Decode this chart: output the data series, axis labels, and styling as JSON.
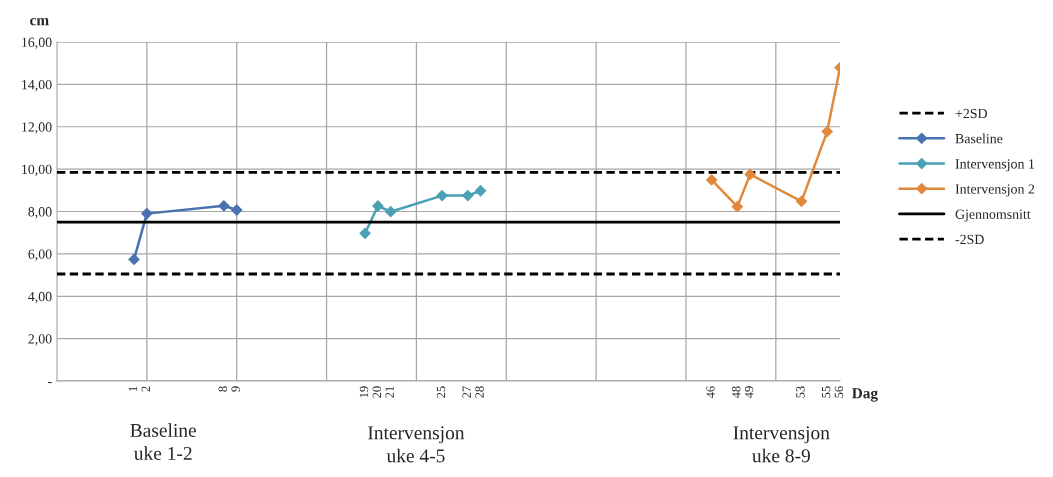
{
  "chart_data": {
    "type": "line",
    "ylabel": "cm",
    "xlabel": "Dag",
    "xlim": [
      -5,
      56
    ],
    "ylim": [
      0,
      16
    ],
    "xticks": [
      1,
      2,
      8,
      9,
      19,
      20,
      21,
      25,
      27,
      28,
      46,
      48,
      49,
      53,
      55,
      56
    ],
    "yticks": [
      {
        "value": 0,
        "label": "-"
      },
      {
        "value": 2,
        "label": "2,00"
      },
      {
        "value": 4,
        "label": "4,00"
      },
      {
        "value": 6,
        "label": "6,00"
      },
      {
        "value": 8,
        "label": "8,00"
      },
      {
        "value": 10,
        "label": "10,00"
      },
      {
        "value": 12,
        "label": "12,00"
      },
      {
        "value": 14,
        "label": "14,00"
      },
      {
        "value": 16,
        "label": "16,00"
      }
    ],
    "grid": "y",
    "legend": "right",
    "marker": "diamond",
    "series": [
      {
        "name": "+2SD",
        "color": "#000000",
        "x": [
          -5,
          56
        ],
        "values": [
          9.85,
          9.85
        ],
        "line_style": "dashed",
        "marker": "none"
      },
      {
        "name": "Baseline",
        "color": "#4a72b0",
        "x": [
          1,
          2,
          8,
          9
        ],
        "values": [
          5.74,
          7.9,
          8.27,
          8.07
        ]
      },
      {
        "name": "Intervensjon 1",
        "color": "#4aa0b5",
        "x": [
          19,
          20,
          21,
          25,
          27,
          28
        ],
        "values": [
          6.97,
          8.26,
          7.99,
          8.75,
          8.75,
          8.98
        ]
      },
      {
        "name": "Intervensjon 2",
        "color": "#e0893c",
        "x": [
          46,
          48,
          49,
          53,
          55,
          56
        ],
        "values": [
          9.49,
          8.23,
          9.75,
          8.48,
          11.77,
          14.79
        ]
      },
      {
        "name": "Gjennomsnitt",
        "color": "#000000",
        "x": [
          -5,
          56
        ],
        "values": [
          7.5,
          7.5
        ],
        "line_style": "solid",
        "marker": "none"
      },
      {
        "name": "-2SD",
        "color": "#000000",
        "x": [
          -5,
          56
        ],
        "values": [
          5.05,
          5.05
        ],
        "line_style": "dashed",
        "marker": "none"
      }
    ],
    "ref_lines": [
      {
        "axis": "x",
        "value": 2,
        "color": "#a6a6a6"
      },
      {
        "axis": "x",
        "value": 9,
        "color": "#a6a6a6"
      },
      {
        "axis": "x",
        "value": 16,
        "color": "#a6a6a6"
      },
      {
        "axis": "x",
        "value": 23,
        "color": "#a6a6a6"
      },
      {
        "axis": "x",
        "value": 30,
        "color": "#a6a6a6"
      },
      {
        "axis": "x",
        "value": 37,
        "color": "#a6a6a6"
      },
      {
        "axis": "x",
        "value": 44,
        "color": "#a6a6a6"
      },
      {
        "axis": "x",
        "value": 51,
        "color": "#a6a6a6"
      }
    ],
    "annotations": [
      "Baseline\nuke 1-2",
      "Intervensjon\nuke 4-5",
      "Intervensjon\nuke 8-9"
    ]
  }
}
